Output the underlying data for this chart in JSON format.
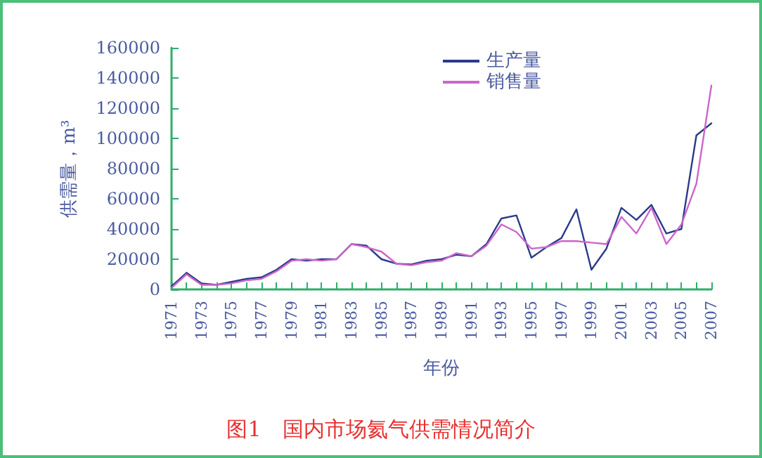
{
  "chart_data": {
    "type": "line",
    "title": "图1　国内市场氦气供需情况简介",
    "xlabel": "年份",
    "ylabel": "供需量，m³",
    "categories": [
      "1971",
      null,
      "1973",
      null,
      "1975",
      null,
      "1977",
      null,
      "1979",
      null,
      "1981",
      null,
      "1983",
      null,
      "1985",
      null,
      "1987",
      null,
      "1989",
      null,
      "1991",
      null,
      "1993",
      null,
      "1995",
      null,
      "1997",
      null,
      "1999",
      null,
      "2001",
      null,
      "2003",
      null,
      "2005",
      null,
      "2007"
    ],
    "series": [
      {
        "name": "生产量",
        "color": "#2a3a8a",
        "values": [
          2000,
          11000,
          4000,
          3000,
          5000,
          7000,
          8000,
          13000,
          20000,
          19000,
          20000,
          20000,
          30000,
          29000,
          20000,
          17000,
          16500,
          19000,
          20000,
          23000,
          22000,
          30000,
          47000,
          49000,
          21000,
          28000,
          34000,
          53000,
          13000,
          27000,
          54000,
          46000,
          56000,
          37000,
          40000,
          102000,
          110000
        ]
      },
      {
        "name": "销售量",
        "color": "#cc66cc",
        "values": [
          1000,
          10000,
          3000,
          3000,
          4000,
          6000,
          7000,
          12000,
          19000,
          20000,
          19000,
          20000,
          30000,
          28000,
          25000,
          17000,
          16000,
          18000,
          19000,
          24000,
          22000,
          29000,
          43000,
          38000,
          27000,
          28000,
          32000,
          32000,
          31000,
          30000,
          48000,
          37000,
          54000,
          30000,
          43000,
          70000,
          135000
        ]
      }
    ],
    "ylim": [
      0,
      160000
    ],
    "yticks": [
      0,
      20000,
      40000,
      60000,
      80000,
      100000,
      120000,
      140000,
      160000
    ],
    "grid": false,
    "legend": "top right",
    "marker": "none",
    "line_style": "solid"
  }
}
